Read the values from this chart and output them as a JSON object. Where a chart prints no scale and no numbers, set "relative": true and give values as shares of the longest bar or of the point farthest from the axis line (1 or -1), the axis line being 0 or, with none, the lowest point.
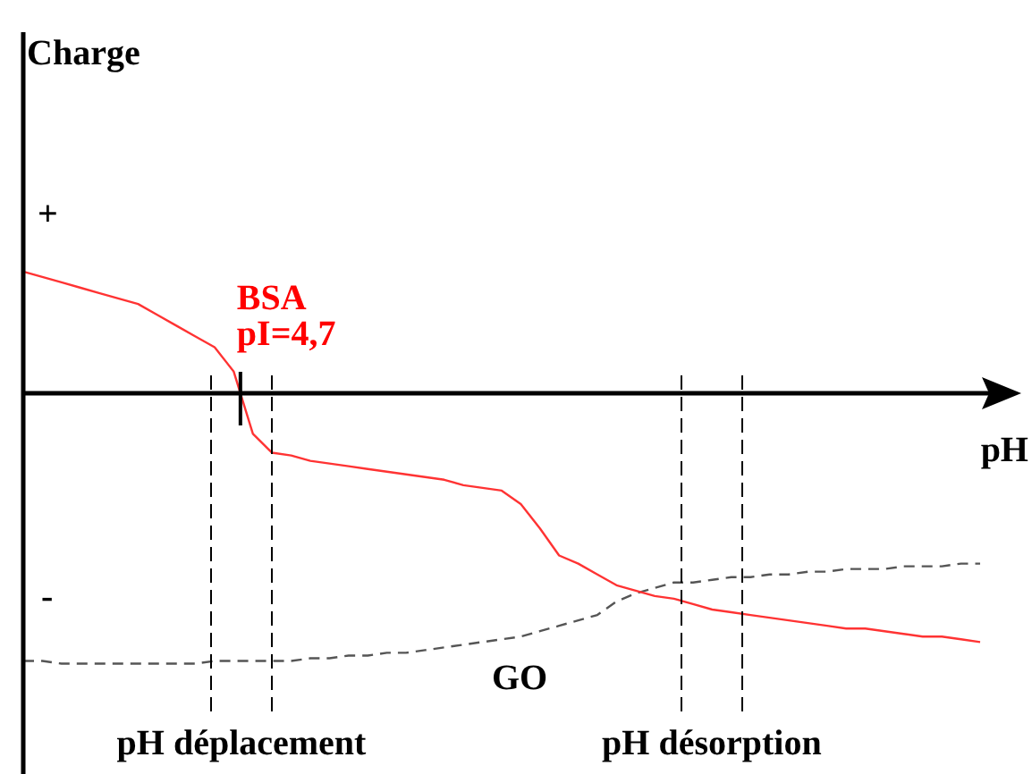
{
  "chart_data": {
    "type": "line",
    "relative": true,
    "xlabel": "pH",
    "legend": false,
    "marker": "none",
    "categories": [
      null,
      null,
      null,
      null,
      null,
      null,
      null,
      null,
      null,
      null,
      null,
      null,
      null,
      null,
      null,
      null,
      null,
      null,
      null,
      null,
      null,
      null,
      null,
      null,
      null,
      null,
      null,
      null,
      null,
      null,
      null,
      null,
      null,
      null,
      null,
      null,
      null,
      null,
      null,
      null,
      null,
      null,
      null,
      null,
      null,
      null,
      null,
      null,
      null,
      null,
      null
    ],
    "series": [
      {
        "name": "BSA",
        "color": "#ff3333",
        "line_style": "solid",
        "values": [
          0.45,
          0.43,
          0.41,
          0.39,
          0.37,
          0.35,
          0.33,
          0.29,
          0.25,
          0.21,
          0.17,
          0.08,
          -0.15,
          -0.22,
          -0.23,
          -0.25,
          -0.26,
          -0.27,
          -0.28,
          -0.29,
          -0.3,
          -0.31,
          -0.32,
          -0.34,
          -0.35,
          -0.36,
          -0.41,
          -0.5,
          -0.6,
          -0.63,
          -0.67,
          -0.71,
          -0.73,
          -0.75,
          -0.76,
          -0.78,
          -0.8,
          -0.81,
          -0.82,
          -0.83,
          -0.84,
          -0.85,
          -0.86,
          -0.87,
          -0.87,
          -0.88,
          -0.89,
          -0.9,
          -0.9,
          -0.91,
          -0.92
        ]
      },
      {
        "name": "GO",
        "color": "#555555",
        "line_style": "dashed",
        "values": [
          -0.99,
          -0.99,
          -1,
          -1,
          -1,
          -1,
          -1,
          -1,
          -1,
          -1,
          -0.99,
          -0.99,
          -0.99,
          -0.99,
          -0.99,
          -0.98,
          -0.98,
          -0.97,
          -0.97,
          -0.96,
          -0.96,
          -0.95,
          -0.94,
          -0.93,
          -0.92,
          -0.91,
          -0.9,
          -0.88,
          -0.86,
          -0.84,
          -0.82,
          -0.77,
          -0.74,
          -0.72,
          -0.7,
          -0.7,
          -0.69,
          -0.68,
          -0.68,
          -0.67,
          -0.67,
          -0.66,
          -0.66,
          -0.65,
          -0.65,
          -0.65,
          -0.64,
          -0.64,
          -0.64,
          -0.63,
          -0.63
        ]
      }
    ],
    "annotations": [
      "Charge",
      "+",
      "-",
      "pI=4,7",
      "pH déplacement",
      "pH désorption"
    ]
  }
}
